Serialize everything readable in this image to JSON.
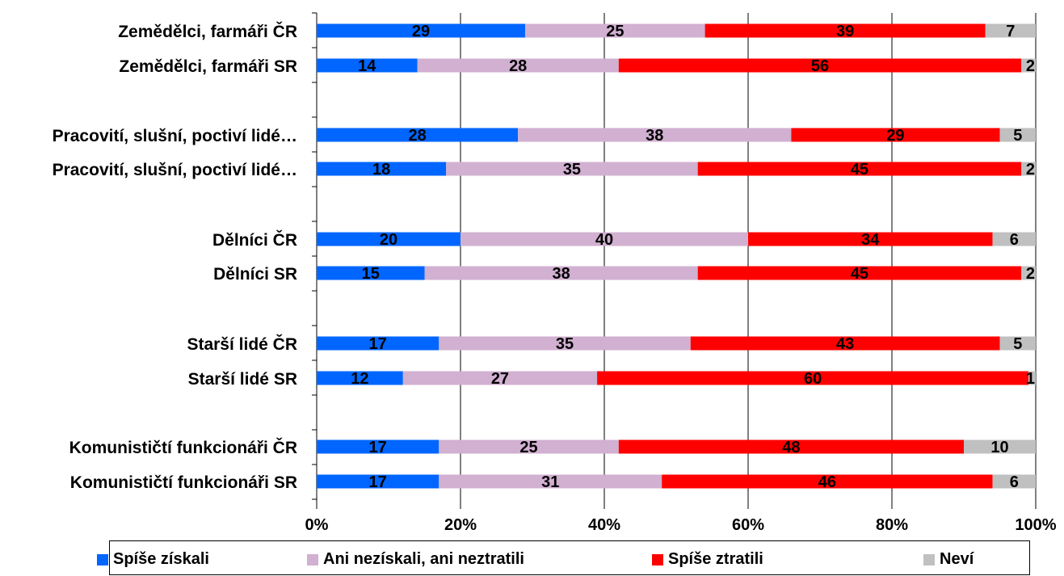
{
  "chart_data": {
    "type": "bar",
    "orientation": "horizontal",
    "stacked": "100%",
    "categories": [
      "Zemědělci, farmáři ČR",
      "Zemědělci, farmáři SR",
      "Pracovití, slušní, poctiví lidé…",
      "Pracovití, slušní, poctiví lidé…",
      "Dělníci ČR",
      "Dělníci SR",
      "Starší lidé ČR",
      "Starší lidé SR",
      "Komunističtí funkcionáři ČR",
      "Komunističtí funkcionáři SR"
    ],
    "series": [
      {
        "name": "Spíše získali",
        "color": "#0066ff",
        "values": [
          29,
          14,
          28,
          18,
          20,
          15,
          17,
          12,
          17,
          17
        ]
      },
      {
        "name": "Ani nezískali, ani neztratili",
        "color": "#d1b0d1",
        "values": [
          25,
          28,
          38,
          35,
          40,
          38,
          35,
          27,
          25,
          31
        ]
      },
      {
        "name": "Spíše ztratili",
        "color": "#ff0000",
        "values": [
          39,
          56,
          29,
          45,
          34,
          45,
          43,
          60,
          48,
          46
        ]
      },
      {
        "name": "Neví",
        "color": "#c0c0c0",
        "values": [
          7,
          2,
          5,
          2,
          6,
          2,
          5,
          1,
          10,
          6
        ]
      }
    ],
    "xlim": [
      0,
      100
    ],
    "x_ticks": [
      "0%",
      "20%",
      "40%",
      "60%",
      "80%",
      "100%"
    ],
    "grid": true,
    "legend": "bottom"
  }
}
